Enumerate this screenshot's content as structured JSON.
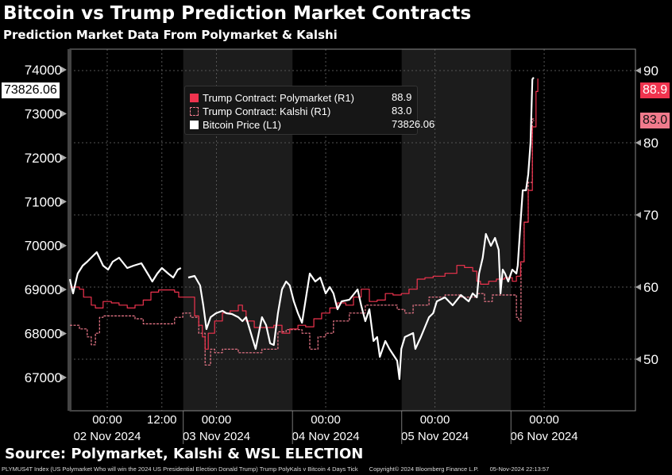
{
  "header": {
    "title": "Bitcoin vs Trump Prediction Market Contracts",
    "subtitle": "Prediction Market Data From Polymarket & Kalshi"
  },
  "footer": {
    "source": "Source: Polymarket, Kalshi & WSL ELECTION",
    "description": "PLYMUS4T Index (US Polymarket Who will win the 2024 US Presidential Election Donald Trump) Trump PolyKals v Bitcoin 4 Days  Tick",
    "copyright": "Copyright© 2024 Bloomberg Finance L.P.",
    "timestamp": "05-Nov-2024 22:13:57"
  },
  "colors": {
    "polymarket": "#f0334e",
    "kalshi": "#f07a8c",
    "bitcoin": "#ffffff",
    "shade": "#1c1c1c"
  },
  "chart_data": {
    "type": "line",
    "title": "Bitcoin vs Trump Prediction Market Contracts",
    "x_unit": "hours since 02 Nov 2024 00:00",
    "x_ticks": [
      {
        "t": 0,
        "time": "00:00",
        "date": "02 Nov 2024"
      },
      {
        "t": 12,
        "time": "12:00",
        "date": ""
      },
      {
        "t": 24,
        "time": "00:00",
        "date": "03 Nov 2024"
      },
      {
        "t": 48,
        "time": "00:00",
        "date": "04 Nov 2024"
      },
      {
        "t": 72,
        "time": "00:00",
        "date": "05 Nov 2024"
      },
      {
        "t": 96,
        "time": "00:00",
        "date": "06 Nov 2024"
      }
    ],
    "shaded_ranges": [
      [
        16.7,
        40.7
      ],
      [
        64.7,
        88.7
      ]
    ],
    "left_axis": {
      "label": "Bitcoin Price",
      "ylim": [
        66300,
        74500
      ],
      "ticks": [
        67000,
        68000,
        69000,
        70000,
        71000,
        72000,
        73000,
        74000
      ]
    },
    "right_axis": {
      "label": "Trump Contract",
      "ylim": [
        43,
        92.5
      ],
      "ticks": [
        50,
        60,
        70,
        80,
        90
      ]
    },
    "legend": [
      {
        "name": "Trump Contract: Polymarket (R1)",
        "last": "88.9"
      },
      {
        "name": "Trump Contract: Kalshi (R1)",
        "last": "83.0"
      },
      {
        "name": "Bitcoin Price (L1)",
        "last": "73826.06"
      }
    ],
    "last_tags": {
      "bitcoin": "73826.06",
      "polymarket": "88.9",
      "kalshi": "83.0"
    },
    "series": [
      {
        "name": "Bitcoin Price",
        "axis": "left",
        "points": [
          [
            -8.2,
            69237
          ],
          [
            -7.5,
            68913
          ],
          [
            -6.5,
            69364
          ],
          [
            -5.4,
            69544
          ],
          [
            -4.4,
            69634
          ],
          [
            -2.3,
            69851
          ],
          [
            -0.9,
            69544
          ],
          [
            0.2,
            69454
          ],
          [
            1.2,
            69634
          ],
          [
            2.6,
            69724
          ],
          [
            4.4,
            69490
          ],
          [
            5.8,
            69544
          ],
          [
            7.5,
            69598
          ],
          [
            9.2,
            69310
          ],
          [
            9.9,
            69183
          ],
          [
            11,
            69364
          ],
          [
            12,
            69490
          ],
          [
            13.4,
            69364
          ],
          [
            14.5,
            69274
          ],
          [
            15.5,
            69454
          ],
          [
            16.2,
            69490
          ],
          null,
          [
            17.8,
            69274
          ],
          [
            19.2,
            69310
          ],
          [
            20.4,
            69093
          ],
          [
            21.1,
            68642
          ],
          [
            21.8,
            68101
          ],
          [
            22.7,
            68371
          ],
          [
            23.9,
            68462
          ],
          [
            25.3,
            68516
          ],
          [
            26.2,
            68462
          ],
          [
            27.4,
            68444
          ],
          [
            28.8,
            68371
          ],
          [
            29.7,
            68281
          ],
          [
            30.5,
            68371
          ],
          [
            32.6,
            67650
          ],
          [
            34,
            68371
          ],
          [
            34.9,
            68191
          ],
          [
            35.8,
            67776
          ],
          [
            36.6,
            67740
          ],
          [
            37.5,
            68462
          ],
          [
            38.4,
            69003
          ],
          [
            39.3,
            69183
          ],
          [
            40.1,
            69093
          ],
          [
            41,
            68732
          ],
          [
            41.9,
            68462
          ],
          [
            42.8,
            68245
          ],
          [
            44.5,
            69364
          ],
          [
            45.7,
            69183
          ],
          [
            46.8,
            69274
          ],
          [
            48,
            68913
          ],
          [
            48.9,
            69057
          ],
          [
            49.7,
            68913
          ],
          [
            50.6,
            68552
          ],
          [
            51.5,
            68732
          ],
          [
            53.2,
            68768
          ],
          [
            55,
            69003
          ],
          [
            55.8,
            68642
          ],
          [
            56.7,
            68281
          ],
          [
            57.6,
            68552
          ],
          [
            58.5,
            67830
          ],
          [
            59.3,
            67920
          ],
          [
            59.9,
            67470
          ],
          [
            61.1,
            67830
          ],
          [
            62,
            67650
          ],
          [
            63.7,
            67380
          ],
          [
            64.2,
            66965
          ],
          [
            64.6,
            67650
          ],
          [
            65.4,
            67920
          ],
          [
            67.2,
            68011
          ],
          [
            67.7,
            67650
          ],
          [
            68.9,
            67920
          ],
          [
            70.7,
            68371
          ],
          [
            71.6,
            68462
          ],
          [
            72.4,
            68732
          ],
          [
            74.2,
            68823
          ],
          [
            75.9,
            68642
          ],
          [
            77.7,
            68877
          ],
          [
            79.4,
            68732
          ],
          [
            80.3,
            68913
          ],
          [
            81.2,
            68823
          ],
          [
            81.7,
            69364
          ],
          [
            82.5,
            69724
          ],
          [
            83.2,
            70266
          ],
          [
            84.3,
            69995
          ],
          [
            85.2,
            70176
          ],
          [
            86,
            69905
          ],
          [
            86.4,
            68913
          ],
          [
            86.9,
            69454
          ],
          [
            87.4,
            69364
          ],
          [
            88.1,
            69183
          ],
          [
            89,
            69454
          ],
          [
            89.9,
            69364
          ],
          [
            90.2,
            69544
          ],
          [
            90.9,
            70681
          ],
          [
            91.3,
            71258
          ],
          [
            92,
            71258
          ],
          [
            92.5,
            71619
          ],
          [
            93,
            72340
          ],
          [
            93.4,
            73784
          ],
          [
            93.7,
            73826.06
          ]
        ]
      },
      {
        "name": "Trump Contract: Polymarket",
        "axis": "right",
        "points": [
          [
            -8.2,
            60
          ],
          [
            -6.1,
            59.7
          ],
          [
            -5.2,
            58.6
          ],
          [
            -3.5,
            57.5
          ],
          [
            -2.6,
            57.1
          ],
          [
            -0.9,
            58
          ],
          [
            0.9,
            57.8
          ],
          [
            2.6,
            57.5
          ],
          [
            4.4,
            57.1
          ],
          [
            6.1,
            57.5
          ],
          [
            7.9,
            58.2
          ],
          [
            9.6,
            59.3
          ],
          [
            11.3,
            59.6
          ],
          [
            13.1,
            59.6
          ],
          [
            14.8,
            59.3
          ],
          [
            15.7,
            58.6
          ],
          [
            16.6,
            58.6
          ],
          [
            18.3,
            58.6
          ],
          [
            19.2,
            56
          ],
          [
            20.1,
            54.7
          ],
          [
            20.9,
            53.1
          ],
          [
            21.5,
            51.4
          ],
          [
            22.2,
            53.6
          ],
          [
            23.6,
            55.3
          ],
          [
            25.3,
            56.4
          ],
          [
            27,
            56.7
          ],
          [
            28.8,
            57.5
          ],
          [
            29.7,
            56.7
          ],
          [
            30.5,
            55.3
          ],
          [
            32.3,
            54.4
          ],
          [
            34,
            54.4
          ],
          [
            35.8,
            54.4
          ],
          [
            36.6,
            54.7
          ],
          [
            38.4,
            53.6
          ],
          [
            40.1,
            54.2
          ],
          [
            41.9,
            54.7
          ],
          [
            43.6,
            54.5
          ],
          [
            45.4,
            55.6
          ],
          [
            47.1,
            56.4
          ],
          [
            48.9,
            57.1
          ],
          [
            50.6,
            57.8
          ],
          [
            52.4,
            57.5
          ],
          [
            54.1,
            58.6
          ],
          [
            55.8,
            59.7
          ],
          [
            57.6,
            58
          ],
          [
            59.3,
            58.2
          ],
          [
            61.1,
            59.1
          ],
          [
            62.8,
            58.9
          ],
          [
            64.6,
            59.1
          ],
          [
            66.3,
            59.7
          ],
          [
            68.1,
            61.1
          ],
          [
            69.8,
            61.3
          ],
          [
            71.6,
            61.5
          ],
          [
            74.2,
            61.9
          ],
          [
            76.8,
            63
          ],
          [
            78.5,
            62.7
          ],
          [
            80.3,
            62.2
          ],
          [
            81.2,
            60.8
          ],
          [
            82,
            60.4
          ],
          [
            83.8,
            60.8
          ],
          [
            85.5,
            61.1
          ],
          [
            87.3,
            61.3
          ],
          [
            89,
            60.8
          ],
          [
            89.9,
            61.5
          ],
          [
            90.8,
            63.5
          ],
          [
            91.6,
            69
          ],
          [
            92.5,
            73.4
          ],
          [
            93.4,
            82.2
          ],
          [
            94.2,
            87.1
          ],
          [
            94.6,
            88.9
          ]
        ]
      },
      {
        "name": "Trump Contract: Kalshi",
        "axis": "right",
        "points": [
          [
            -8.2,
            54.7
          ],
          [
            -6.1,
            54.2
          ],
          [
            -4.4,
            53.1
          ],
          [
            -3.5,
            52
          ],
          [
            -2.6,
            53.6
          ],
          [
            -1.7,
            55.8
          ],
          [
            -0.9,
            56
          ],
          [
            2.6,
            56
          ],
          [
            6.1,
            55.6
          ],
          [
            7.9,
            54.9
          ],
          [
            11.3,
            54.9
          ],
          [
            14.8,
            55.8
          ],
          [
            16.6,
            56.4
          ],
          [
            18.3,
            55.8
          ],
          [
            20.1,
            53.6
          ],
          [
            21.5,
            49.2
          ],
          [
            22.7,
            51.4
          ],
          [
            23.6,
            50.9
          ],
          [
            25.3,
            51.4
          ],
          [
            28.8,
            50.9
          ],
          [
            30.5,
            50.9
          ],
          [
            32.3,
            50.9
          ],
          [
            34,
            51.4
          ],
          [
            35.8,
            51.4
          ],
          [
            37.5,
            53.8
          ],
          [
            39.3,
            54.1
          ],
          [
            42.8,
            53.6
          ],
          [
            44.5,
            51.4
          ],
          [
            46.3,
            53.1
          ],
          [
            48,
            53.6
          ],
          [
            49.7,
            55.3
          ],
          [
            53.2,
            56.4
          ],
          [
            56.7,
            57.5
          ],
          [
            60.2,
            57.5
          ],
          [
            63.7,
            56.9
          ],
          [
            65.4,
            56.4
          ],
          [
            67.2,
            57.5
          ],
          [
            68.9,
            57.5
          ],
          [
            70.7,
            58.6
          ],
          [
            74.2,
            58.9
          ],
          [
            77.7,
            58.6
          ],
          [
            81.2,
            59.1
          ],
          [
            82.9,
            58
          ],
          [
            84.6,
            58.9
          ],
          [
            88.1,
            58.9
          ],
          [
            89.9,
            55.8
          ],
          [
            90.4,
            55.3
          ],
          [
            90.9,
            63.5
          ],
          [
            91.6,
            69
          ],
          [
            92.5,
            74.5
          ],
          [
            93.4,
            83.3
          ],
          [
            93.7,
            83
          ]
        ]
      }
    ]
  }
}
